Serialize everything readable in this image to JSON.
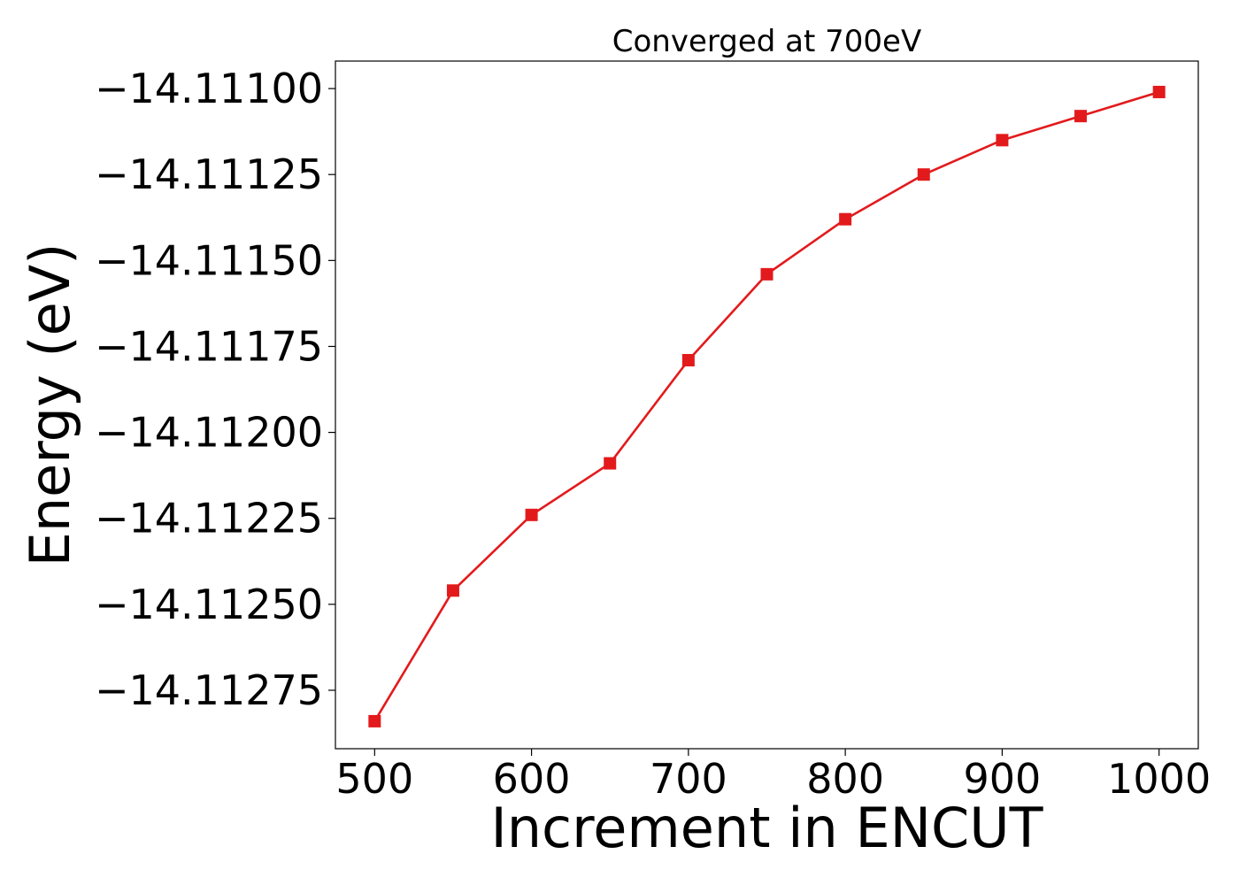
{
  "chart_data": {
    "type": "line",
    "title": "Converged at 700eV",
    "xlabel": "Increment in ENCUT",
    "ylabel": "Energy (eV)",
    "x": [
      500,
      550,
      600,
      650,
      700,
      750,
      800,
      850,
      900,
      950,
      1000
    ],
    "series": [
      {
        "values": [
          -14.11284,
          -14.11246,
          -14.11224,
          -14.11209,
          -14.11179,
          -14.11154,
          -14.11138,
          -14.11125,
          -14.11115,
          -14.11108,
          -14.11101
        ],
        "color": "#e31a1c",
        "marker": "square"
      }
    ],
    "xlim": [
      475,
      1025
    ],
    "ylim": [
      -14.11292,
      -14.11092
    ],
    "xticks": [
      500,
      600,
      700,
      800,
      900,
      1000
    ],
    "xtick_labels": [
      "500",
      "600",
      "700",
      "800",
      "900",
      "1000"
    ],
    "yticks": [
      -14.111,
      -14.11125,
      -14.1115,
      -14.11175,
      -14.112,
      -14.11225,
      -14.1125,
      -14.11275
    ],
    "ytick_labels": [
      "−14.11100",
      "−14.11125",
      "−14.11150",
      "−14.11175",
      "−14.11200",
      "−14.11225",
      "−14.11250",
      "−14.11275"
    ],
    "grid": false,
    "legend": "none"
  }
}
